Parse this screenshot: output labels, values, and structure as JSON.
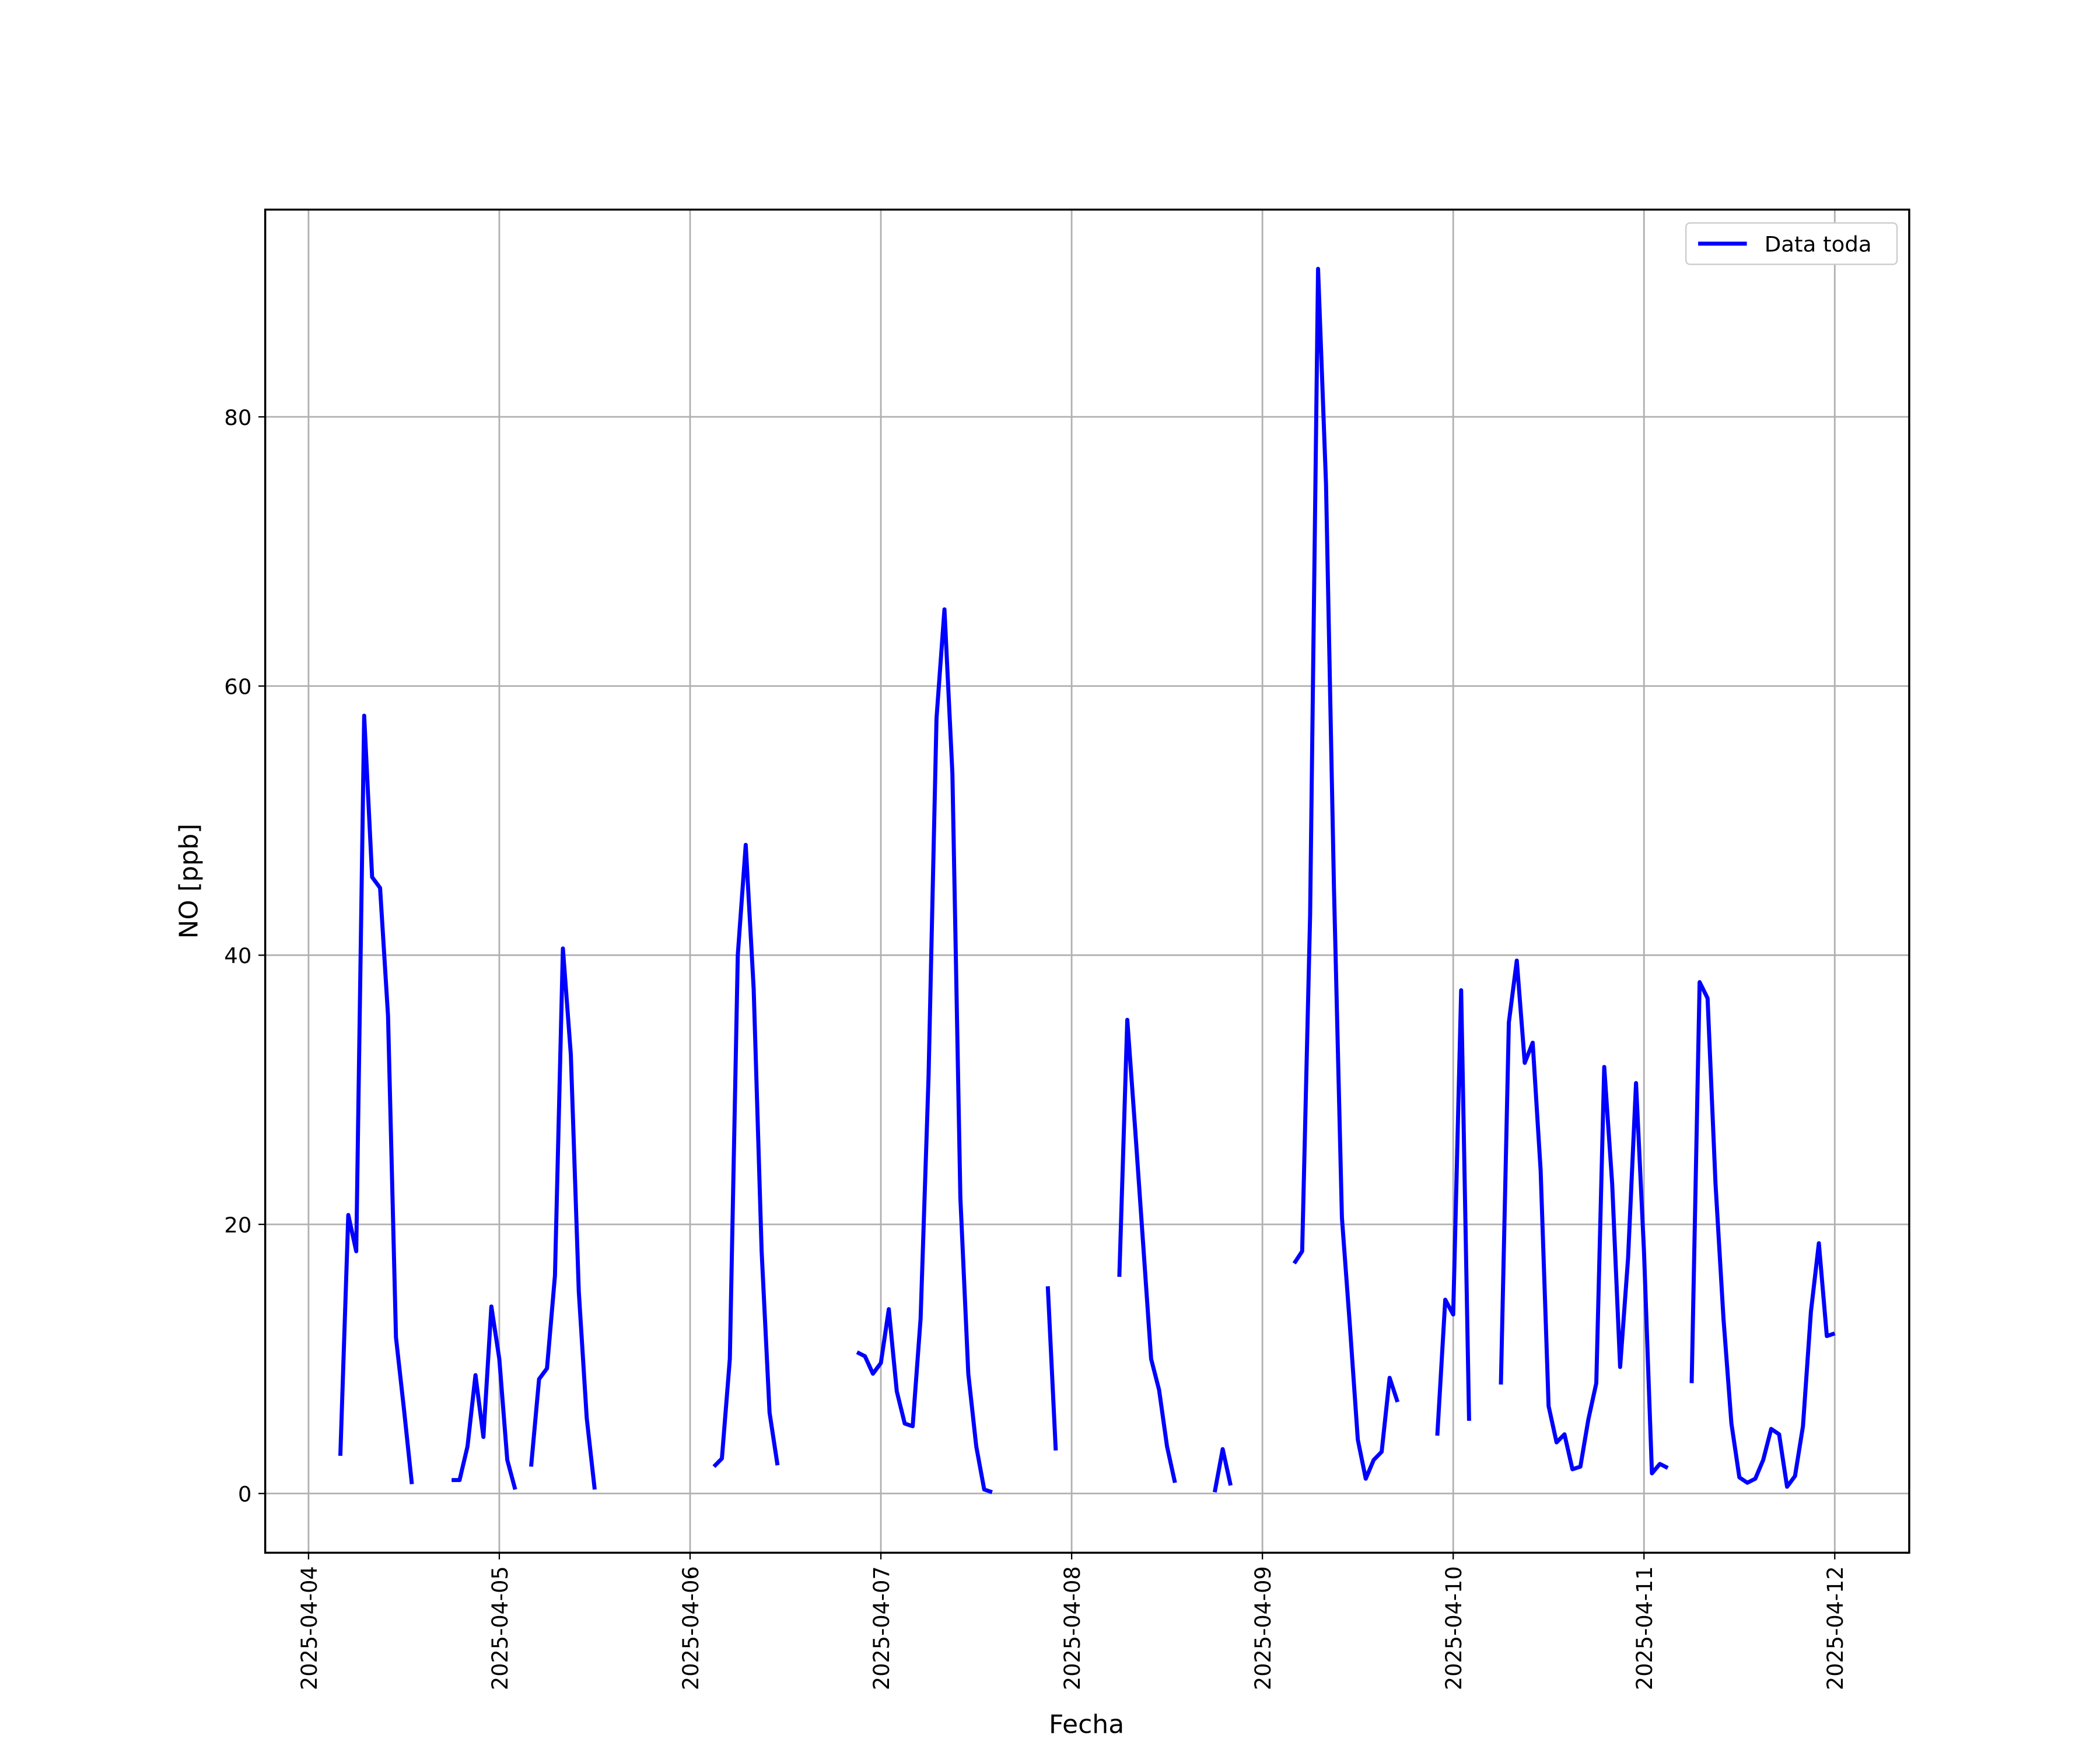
{
  "chart_data": {
    "type": "line",
    "x_label": "Fecha",
    "y_label": "NO [ppb]",
    "x": [
      "2025-04-04 04:00",
      "2025-04-04 05:00",
      "2025-04-04 06:00",
      "2025-04-04 07:00",
      "2025-04-04 08:00",
      "2025-04-04 09:00",
      "2025-04-04 10:00",
      "2025-04-04 11:00",
      "2025-04-04 12:00",
      "2025-04-04 13:00",
      "2025-04-04 14:00",
      "2025-04-04 18:00",
      "2025-04-04 19:00",
      "2025-04-04 20:00",
      "2025-04-04 21:00",
      "2025-04-04 22:00",
      "2025-04-04 23:00",
      "2025-04-05 00:00",
      "2025-04-05 01:00",
      "2025-04-05 02:00",
      "2025-04-05 03:00",
      "2025-04-05 04:00",
      "2025-04-05 05:00",
      "2025-04-05 06:00",
      "2025-04-05 07:00",
      "2025-04-05 08:00",
      "2025-04-05 09:00",
      "2025-04-05 10:00",
      "2025-04-05 11:00",
      "2025-04-05 12:00",
      "2025-04-05 13:00",
      "2025-04-06 03:00",
      "2025-04-06 04:00",
      "2025-04-06 05:00",
      "2025-04-06 06:00",
      "2025-04-06 07:00",
      "2025-04-06 08:00",
      "2025-04-06 09:00",
      "2025-04-06 10:00",
      "2025-04-06 11:00",
      "2025-04-06 12:00",
      "2025-04-06 21:00",
      "2025-04-06 22:00",
      "2025-04-06 23:00",
      "2025-04-07 00:00",
      "2025-04-07 01:00",
      "2025-04-07 02:00",
      "2025-04-07 03:00",
      "2025-04-07 04:00",
      "2025-04-07 05:00",
      "2025-04-07 06:00",
      "2025-04-07 07:00",
      "2025-04-07 08:00",
      "2025-04-07 09:00",
      "2025-04-07 10:00",
      "2025-04-07 11:00",
      "2025-04-07 12:00",
      "2025-04-07 13:00",
      "2025-04-07 14:00",
      "2025-04-07 15:00",
      "2025-04-07 21:00",
      "2025-04-07 22:00",
      "2025-04-07 23:00",
      "2025-04-08 06:00",
      "2025-04-08 07:00",
      "2025-04-08 08:00",
      "2025-04-08 09:00",
      "2025-04-08 10:00",
      "2025-04-08 11:00",
      "2025-04-08 12:00",
      "2025-04-08 13:00",
      "2025-04-08 14:00",
      "2025-04-08 18:00",
      "2025-04-08 19:00",
      "2025-04-08 20:00",
      "2025-04-08 21:00",
      "2025-04-09 04:00",
      "2025-04-09 05:00",
      "2025-04-09 06:00",
      "2025-04-09 07:00",
      "2025-04-09 08:00",
      "2025-04-09 09:00",
      "2025-04-09 10:00",
      "2025-04-09 11:00",
      "2025-04-09 12:00",
      "2025-04-09 13:00",
      "2025-04-09 14:00",
      "2025-04-09 15:00",
      "2025-04-09 16:00",
      "2025-04-09 17:00",
      "2025-04-09 18:00",
      "2025-04-09 22:00",
      "2025-04-09 23:00",
      "2025-04-10 00:00",
      "2025-04-10 01:00",
      "2025-04-10 02:00",
      "2025-04-10 03:00",
      "2025-04-10 06:00",
      "2025-04-10 07:00",
      "2025-04-10 08:00",
      "2025-04-10 09:00",
      "2025-04-10 10:00",
      "2025-04-10 11:00",
      "2025-04-10 12:00",
      "2025-04-10 13:00",
      "2025-04-10 14:00",
      "2025-04-10 15:00",
      "2025-04-10 16:00",
      "2025-04-10 17:00",
      "2025-04-10 18:00",
      "2025-04-10 19:00",
      "2025-04-10 20:00",
      "2025-04-10 21:00",
      "2025-04-10 22:00",
      "2025-04-10 23:00",
      "2025-04-11 00:00",
      "2025-04-11 01:00",
      "2025-04-11 02:00",
      "2025-04-11 03:00",
      "2025-04-11 04:00",
      "2025-04-11 06:00",
      "2025-04-11 07:00",
      "2025-04-11 08:00",
      "2025-04-11 09:00",
      "2025-04-11 10:00",
      "2025-04-11 11:00",
      "2025-04-11 12:00",
      "2025-04-11 13:00",
      "2025-04-11 14:00",
      "2025-04-11 15:00",
      "2025-04-11 16:00",
      "2025-04-11 17:00",
      "2025-04-11 18:00",
      "2025-04-11 19:00",
      "2025-04-11 20:00",
      "2025-04-11 21:00",
      "2025-04-11 22:00",
      "2025-04-11 23:00",
      "2025-04-12 00:00"
    ],
    "series": [
      {
        "name": "Data toda",
        "color": "#0000ff",
        "values": [
          2.8,
          20.7,
          18,
          57.8,
          45.8,
          45,
          35.5,
          11.6,
          6.3,
          0.7,
          null,
          1.0,
          1.0,
          3.5,
          8.8,
          4.2,
          13.9,
          10.0,
          2.5,
          0.3,
          null,
          2.0,
          8.5,
          9.3,
          16.2,
          40.5,
          32.6,
          15,
          5.6,
          0.3,
          null,
          2.0,
          2.6,
          10,
          40,
          48.2,
          37.5,
          18,
          6,
          2.1,
          null,
          10.5,
          10.2,
          8.9,
          9.7,
          13.7,
          7.6,
          5.2,
          5.0,
          13,
          31,
          57.6,
          65.7,
          53.5,
          22,
          8.9,
          3.5,
          0.3,
          0.1,
          null,
          15.4,
          3.2,
          null,
          16.1,
          35.2,
          27,
          18.5,
          10,
          7.7,
          3.5,
          0.8,
          null,
          0.1,
          3.3,
          0.6,
          null,
          17.1,
          18.0,
          43,
          91,
          75,
          45,
          20.5,
          12.5,
          4,
          1.1,
          2.5,
          3.1,
          8.6,
          6.8,
          null,
          4.3,
          14.4,
          13.3,
          37.4,
          5.4,
          null,
          8.1,
          35,
          39.6,
          32,
          33.5,
          24,
          6.5,
          3.8,
          4.4,
          1.8,
          2.0,
          5.5,
          8.2,
          31.7,
          23,
          9.4,
          17.5,
          30.5,
          18,
          1.5,
          2.2,
          1.9,
          null,
          8.2,
          38,
          36.8,
          23,
          13,
          5.2,
          1.2,
          0.8,
          1.1,
          2.5,
          4.8,
          4.4,
          0.5,
          1.3,
          5,
          13.5,
          18.6,
          11.7,
          11.9
        ]
      }
    ],
    "xlim": [
      "2025-04-03 18:33",
      "2025-04-12 09:22"
    ],
    "xticks": [
      "2025-04-04",
      "2025-04-05",
      "2025-04-06",
      "2025-04-07",
      "2025-04-08",
      "2025-04-09",
      "2025-04-10",
      "2025-04-11",
      "2025-04-12"
    ],
    "ylim": [
      -4.4,
      95.4
    ],
    "yticks": [
      0,
      20,
      40,
      60,
      80
    ],
    "grid": true,
    "legend": "upper right"
  }
}
